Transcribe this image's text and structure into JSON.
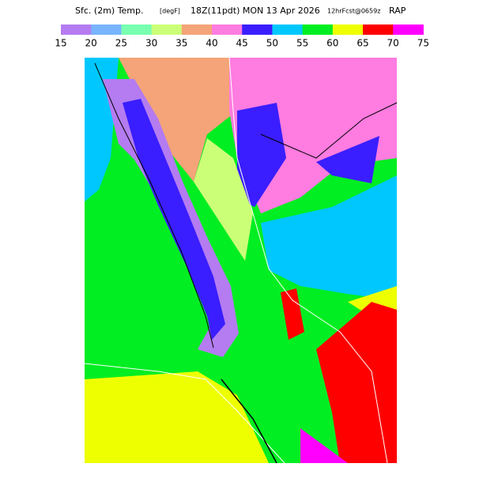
{
  "header": {
    "field": "Sfc. (2m) Temp.",
    "units": "[degF]",
    "time": "18Z(11pdt) MON 13 Apr 2026",
    "forecast": "12hrFcst@0659z",
    "model": "RAP"
  },
  "colorbar": {
    "colors": [
      "#b47cf0",
      "#78b4ff",
      "#78ffb0",
      "#ccff78",
      "#f4a478",
      "#ff7ce0",
      "#3a1eff",
      "#00c8ff",
      "#00ee22",
      "#eeff00",
      "#ff0000",
      "#ff00ff"
    ],
    "labels": [
      15,
      20,
      25,
      30,
      35,
      40,
      45,
      50,
      55,
      60,
      65,
      70,
      75
    ]
  }
}
